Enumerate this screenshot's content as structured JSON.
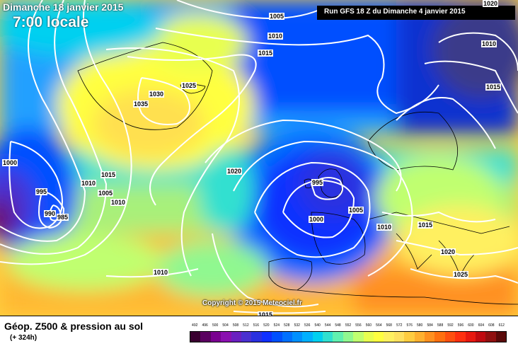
{
  "header": {
    "date": "Dimanche 18 janvier 2015",
    "time": "7:00 locale",
    "run": "Run GFS 18 Z du Dimanche 4 janvier 2015"
  },
  "copyright": "Copyright © 2015 Meteociel.fr",
  "legend": {
    "title": "Géop. Z500 & pression au sol",
    "subtitle": "(+ 324h)",
    "scale": [
      "492",
      "496",
      "500",
      "504",
      "508",
      "512",
      "516",
      "520",
      "524",
      "528",
      "532",
      "536",
      "540",
      "544",
      "548",
      "552",
      "556",
      "560",
      "564",
      "568",
      "572",
      "576",
      "580",
      "584",
      "588",
      "592",
      "596",
      "600",
      "604",
      "608",
      "612"
    ],
    "scale_colors": [
      "#3a0030",
      "#5a0060",
      "#7a0090",
      "#8a10b0",
      "#6a20c0",
      "#4a30d0",
      "#2a30e0",
      "#1030ff",
      "#0050ff",
      "#0070ff",
      "#0090ff",
      "#00b0ff",
      "#00d0f0",
      "#30e0d0",
      "#60f0b0",
      "#90f890",
      "#c0ff70",
      "#e8ff50",
      "#ffff40",
      "#fff060",
      "#ffe060",
      "#ffcc40",
      "#ffb030",
      "#ff9020",
      "#ff7010",
      "#ff5010",
      "#ff3010",
      "#e81810",
      "#c00a10",
      "#901010",
      "#5a0a0a"
    ]
  },
  "isobars": [
    {
      "id": "iso-1005-top",
      "label": "1005"
    },
    {
      "id": "iso-1020-top",
      "label": "1020"
    },
    {
      "id": "iso-1010-north",
      "label": "1010"
    },
    {
      "id": "iso-1015-north",
      "label": "1015"
    },
    {
      "id": "iso-1010-ne",
      "label": "1010"
    },
    {
      "id": "iso-1015-ne",
      "label": "1015"
    },
    {
      "id": "iso-1030",
      "label": "1030"
    },
    {
      "id": "iso-1035",
      "label": "1035"
    },
    {
      "id": "iso-1025-n",
      "label": "1025"
    },
    {
      "id": "iso-1000-w",
      "label": "1000"
    },
    {
      "id": "iso-995-w",
      "label": "995"
    },
    {
      "id": "iso-990-w",
      "label": "990"
    },
    {
      "id": "iso-985-w",
      "label": "985"
    },
    {
      "id": "iso-1015-mid",
      "label": "1015"
    },
    {
      "id": "iso-1010-mid",
      "label": "1010"
    },
    {
      "id": "iso-1005-mid",
      "label": "1005"
    },
    {
      "id": "iso-1010-mid2",
      "label": "1010"
    },
    {
      "id": "iso-1020-atl",
      "label": "1020"
    },
    {
      "id": "iso-995-uk",
      "label": "995"
    },
    {
      "id": "iso-1000-fr",
      "label": "1000"
    },
    {
      "id": "iso-1005-eu",
      "label": "1005"
    },
    {
      "id": "iso-1010-eu",
      "label": "1010"
    },
    {
      "id": "iso-1015-eu",
      "label": "1015"
    },
    {
      "id": "iso-1020-se",
      "label": "1020"
    },
    {
      "id": "iso-1025-se",
      "label": "1025"
    },
    {
      "id": "iso-1010-sw",
      "label": "1010"
    },
    {
      "id": "iso-1015-bottom",
      "label": "1015"
    }
  ]
}
